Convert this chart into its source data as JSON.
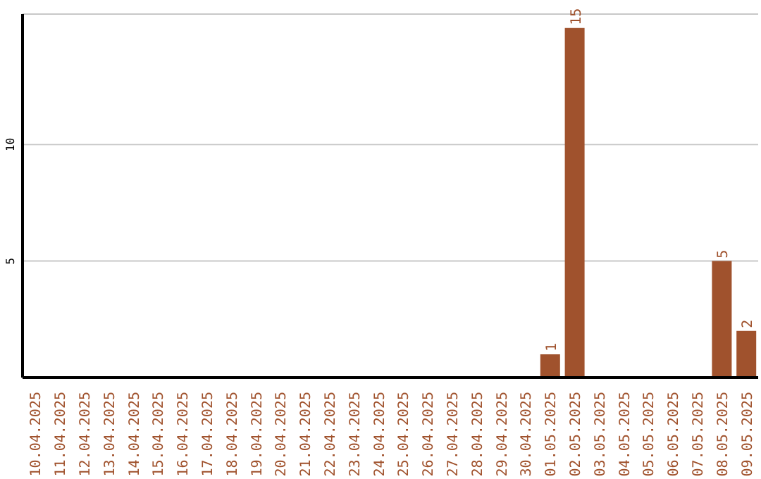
{
  "chart_data": {
    "type": "bar",
    "categories": [
      "10.04.2025",
      "11.04.2025",
      "12.04.2025",
      "13.04.2025",
      "14.04.2025",
      "15.04.2025",
      "16.04.2025",
      "17.04.2025",
      "18.04.2025",
      "19.04.2025",
      "20.04.2025",
      "21.04.2025",
      "22.04.2025",
      "23.04.2025",
      "24.04.2025",
      "25.04.2025",
      "26.04.2025",
      "27.04.2025",
      "28.04.2025",
      "29.04.2025",
      "30.04.2025",
      "01.05.2025",
      "02.05.2025",
      "03.05.2025",
      "04.05.2025",
      "05.05.2025",
      "06.05.2025",
      "07.05.2025",
      "08.05.2025",
      "09.05.2025"
    ],
    "values": [
      0,
      0,
      0,
      0,
      0,
      0,
      0,
      0,
      0,
      0,
      0,
      0,
      0,
      0,
      0,
      0,
      0,
      0,
      0,
      0,
      0,
      1,
      15,
      0,
      0,
      0,
      0,
      0,
      5,
      2
    ],
    "value_labels": [
      null,
      null,
      null,
      null,
      null,
      null,
      null,
      null,
      null,
      null,
      null,
      null,
      null,
      null,
      null,
      null,
      null,
      null,
      null,
      null,
      null,
      "1",
      "15",
      null,
      null,
      null,
      null,
      null,
      "5",
      "2"
    ],
    "color": "#a0522d",
    "ylim": [
      0,
      15.6
    ],
    "yticks": [
      5,
      10
    ],
    "grid": "y"
  }
}
